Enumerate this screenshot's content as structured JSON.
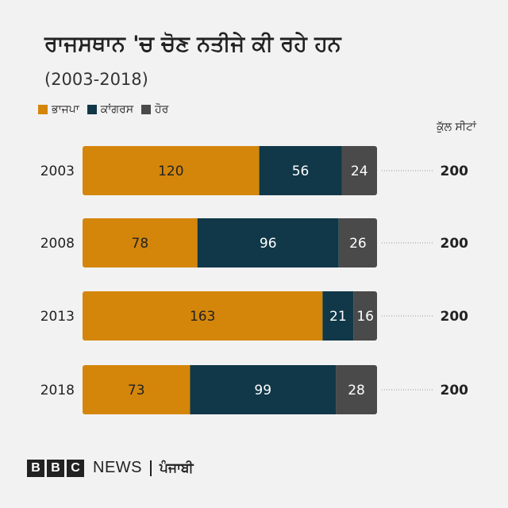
{
  "title": "ਰਾਜਸਥਾਨ 'ਚ ਚੋਣ ਨਤੀਜੇ ਕੀ ਰਹੇ ਹਨ",
  "subtitle": "(2003-2018)",
  "total_header": "ਕੁੱਲ ਸੀਟਾਂ",
  "colors": {
    "bjp": "#d4860b",
    "congress": "#103848",
    "other": "#4a4a4a",
    "bar_label_dark": "#222222",
    "bar_label_light": "#ffffff"
  },
  "footer": {
    "brand_letters": [
      "B",
      "B",
      "C"
    ],
    "news": "NEWS",
    "language": "ਪੰਜਾਬੀ"
  },
  "chart_data": {
    "type": "bar",
    "orientation": "horizontal",
    "stacked": true,
    "categories": [
      "2003",
      "2008",
      "2013",
      "2018"
    ],
    "series": [
      {
        "name": "ਭਾਜਪਾ",
        "values": [
          120,
          78,
          163,
          73
        ]
      },
      {
        "name": "ਕਾਂਗਰਸ",
        "values": [
          56,
          96,
          21,
          99
        ]
      },
      {
        "name": "ਹੋਰ",
        "values": [
          24,
          26,
          16,
          28
        ]
      }
    ],
    "totals": [
      200,
      200,
      200,
      200
    ],
    "xlim": [
      0,
      200
    ],
    "grid": false,
    "legend": "top-left"
  }
}
